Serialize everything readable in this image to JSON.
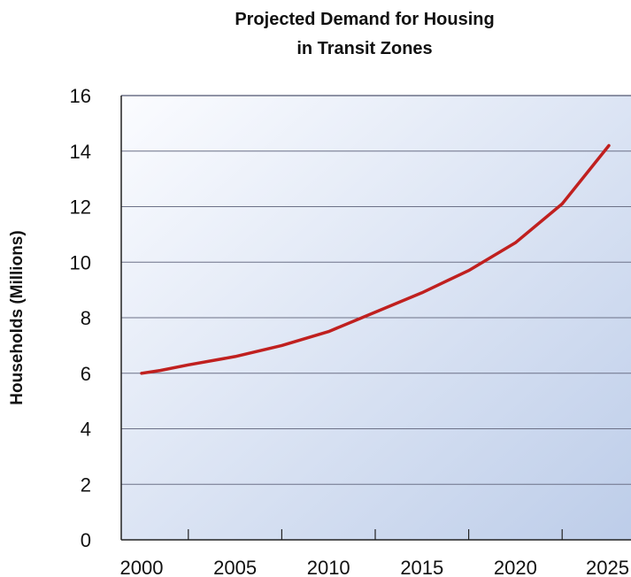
{
  "chart_data": {
    "type": "line",
    "title_lines": [
      "Projected Demand for Housing",
      "in Transit Zones"
    ],
    "xlabel": "",
    "ylabel": "Households (Millions)",
    "xlim": [
      2000,
      2025
    ],
    "ylim": [
      0,
      16
    ],
    "x_ticks": [
      2000,
      2005,
      2010,
      2015,
      2020,
      2025
    ],
    "y_ticks": [
      0,
      2,
      4,
      6,
      8,
      10,
      12,
      14,
      16
    ],
    "grid": "horizontal",
    "legend": "none",
    "series": [
      {
        "color": "#c0201f",
        "x": [
          2000,
          2001,
          2002.5,
          2005,
          2007.5,
          2010,
          2012.5,
          2015,
          2017.5,
          2020,
          2022.5,
          2025
        ],
        "values": [
          6.0,
          6.1,
          6.3,
          6.6,
          7.0,
          7.5,
          8.2,
          8.9,
          9.7,
          10.7,
          12.1,
          14.2
        ]
      }
    ],
    "colors": {
      "plot_bg_start": "#fbfcff",
      "plot_bg_end": "#bdcde9",
      "gridline": "#6c7187",
      "axis": "#222222"
    }
  }
}
